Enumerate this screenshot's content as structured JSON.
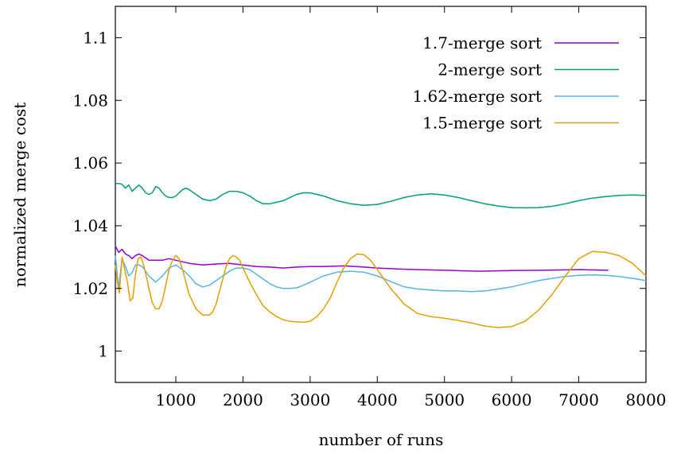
{
  "chart_data": {
    "type": "line",
    "xlabel": "number of runs",
    "ylabel": "normalized merge cost",
    "xlim": [
      100,
      8000
    ],
    "ylim": [
      0.99,
      1.11
    ],
    "xticks": [
      1000,
      2000,
      3000,
      4000,
      5000,
      6000,
      7000,
      8000
    ],
    "yticks": [
      1,
      1.02,
      1.04,
      1.06,
      1.08,
      1.1
    ],
    "xtick_labels": [
      "1000",
      "2000",
      "3000",
      "4000",
      "5000",
      "6000",
      "7000",
      "8000"
    ],
    "ytick_labels": [
      "1",
      "1.02",
      "1.04",
      "1.06",
      "1.08",
      "1.1"
    ],
    "grid": false,
    "legend_position": "top-right",
    "series": [
      {
        "name": "1.7-merge sort",
        "color": "#9400d3",
        "x": [
          100,
          150,
          200,
          250,
          300,
          350,
          400,
          450,
          500,
          600,
          700,
          800,
          900,
          1000,
          1200,
          1400,
          1600,
          1800,
          2000,
          2200,
          2400,
          2600,
          2800,
          3000,
          3200,
          3500,
          3800,
          4000,
          4300,
          4600,
          5000,
          5500,
          6000,
          6500,
          7000,
          7440
        ],
        "values": [
          1.0335,
          1.0315,
          1.0325,
          1.031,
          1.0305,
          1.0295,
          1.0305,
          1.031,
          1.0305,
          1.029,
          1.029,
          1.029,
          1.0295,
          1.029,
          1.028,
          1.0275,
          1.0278,
          1.028,
          1.0275,
          1.027,
          1.0268,
          1.0265,
          1.0268,
          1.027,
          1.027,
          1.0272,
          1.0268,
          1.0265,
          1.0262,
          1.026,
          1.0258,
          1.0255,
          1.0257,
          1.0258,
          1.026,
          1.0258
        ]
      },
      {
        "name": "2-merge sort",
        "color": "#009e73",
        "x": [
          100,
          150,
          200,
          250,
          300,
          350,
          400,
          450,
          500,
          550,
          600,
          650,
          700,
          750,
          800,
          850,
          900,
          950,
          1000,
          1050,
          1100,
          1150,
          1200,
          1300,
          1400,
          1500,
          1600,
          1700,
          1800,
          1900,
          2000,
          2100,
          2200,
          2300,
          2400,
          2500,
          2600,
          2700,
          2800,
          2900,
          3000,
          3200,
          3400,
          3600,
          3800,
          4000,
          4200,
          4400,
          4600,
          4800,
          5000,
          5200,
          5400,
          5600,
          5800,
          6000,
          6200,
          6400,
          6600,
          6800,
          7000,
          7200,
          7400,
          7600,
          7800,
          8000
        ],
        "values": [
          1.0535,
          1.0535,
          1.0532,
          1.052,
          1.053,
          1.051,
          1.052,
          1.053,
          1.052,
          1.0505,
          1.05,
          1.0505,
          1.0525,
          1.052,
          1.0505,
          1.0495,
          1.049,
          1.049,
          1.0495,
          1.0505,
          1.0515,
          1.052,
          1.0515,
          1.05,
          1.0485,
          1.048,
          1.0485,
          1.05,
          1.051,
          1.051,
          1.0505,
          1.0495,
          1.048,
          1.047,
          1.047,
          1.0475,
          1.048,
          1.049,
          1.05,
          1.0505,
          1.0505,
          1.0495,
          1.048,
          1.047,
          1.0465,
          1.0468,
          1.0478,
          1.049,
          1.0498,
          1.0502,
          1.0498,
          1.049,
          1.048,
          1.047,
          1.0463,
          1.0458,
          1.0457,
          1.0458,
          1.0462,
          1.047,
          1.048,
          1.0488,
          1.0493,
          1.0497,
          1.0498,
          1.0497
        ]
      },
      {
        "name": "1.62-merge sort",
        "color": "#56b4e9",
        "x": [
          100,
          150,
          200,
          250,
          300,
          350,
          400,
          450,
          500,
          550,
          600,
          650,
          700,
          800,
          900,
          950,
          1000,
          1100,
          1200,
          1300,
          1400,
          1500,
          1600,
          1700,
          1800,
          1900,
          2000,
          2100,
          2200,
          2300,
          2400,
          2500,
          2600,
          2700,
          2800,
          2900,
          3000,
          3200,
          3400,
          3600,
          3800,
          4000,
          4200,
          4400,
          4600,
          4800,
          5000,
          5200,
          5400,
          5600,
          5800,
          6000,
          6200,
          6400,
          6600,
          6800,
          7000,
          7200,
          7400,
          7600,
          7800,
          8000
        ],
        "values": [
          1.0305,
          1.02,
          1.0295,
          1.027,
          1.024,
          1.025,
          1.0275,
          1.0275,
          1.027,
          1.0255,
          1.024,
          1.023,
          1.022,
          1.024,
          1.0265,
          1.027,
          1.0275,
          1.026,
          1.024,
          1.0215,
          1.0205,
          1.021,
          1.0225,
          1.024,
          1.0255,
          1.0265,
          1.0265,
          1.026,
          1.0245,
          1.023,
          1.0215,
          1.0205,
          1.02,
          1.02,
          1.0202,
          1.021,
          1.022,
          1.024,
          1.0252,
          1.0255,
          1.0252,
          1.024,
          1.0222,
          1.0205,
          1.0198,
          1.0195,
          1.0192,
          1.0192,
          1.019,
          1.0192,
          1.0198,
          1.0205,
          1.0215,
          1.0225,
          1.0232,
          1.0238,
          1.0242,
          1.0243,
          1.0242,
          1.0238,
          1.0232,
          1.0225
        ]
      },
      {
        "name": "1.5-merge sort",
        "color": "#e69f00",
        "x": [
          100,
          130,
          160,
          200,
          240,
          280,
          320,
          360,
          400,
          440,
          480,
          520,
          560,
          600,
          650,
          700,
          750,
          800,
          850,
          900,
          950,
          1000,
          1050,
          1100,
          1150,
          1200,
          1300,
          1400,
          1500,
          1550,
          1600,
          1650,
          1700,
          1750,
          1800,
          1850,
          1900,
          1950,
          2000,
          2100,
          2200,
          2300,
          2400,
          2500,
          2600,
          2700,
          2800,
          2900,
          3000,
          3100,
          3200,
          3300,
          3400,
          3500,
          3600,
          3700,
          3800,
          3900,
          4000,
          4200,
          4400,
          4600,
          4800,
          5000,
          5200,
          5400,
          5600,
          5800,
          6000,
          6200,
          6400,
          6600,
          6800,
          7000,
          7200,
          7400,
          7600,
          7800,
          8000
        ],
        "values": [
          1.0275,
          1.022,
          1.0185,
          1.03,
          1.026,
          1.022,
          1.016,
          1.017,
          1.0245,
          1.0295,
          1.03,
          1.0275,
          1.024,
          1.02,
          1.0155,
          1.0135,
          1.0135,
          1.016,
          1.021,
          1.026,
          1.029,
          1.0305,
          1.0295,
          1.026,
          1.022,
          1.018,
          1.0135,
          1.0115,
          1.0115,
          1.0125,
          1.015,
          1.019,
          1.023,
          1.027,
          1.0295,
          1.0305,
          1.03,
          1.029,
          1.0265,
          1.022,
          1.018,
          1.0145,
          1.0125,
          1.011,
          1.01,
          1.0095,
          1.0093,
          1.0092,
          1.0095,
          1.011,
          1.0135,
          1.017,
          1.022,
          1.0265,
          1.0295,
          1.031,
          1.0308,
          1.029,
          1.026,
          1.02,
          1.015,
          1.012,
          1.011,
          1.0105,
          1.0098,
          1.009,
          1.008,
          1.0075,
          1.0078,
          1.0095,
          1.013,
          1.018,
          1.024,
          1.0295,
          1.0318,
          1.0315,
          1.0305,
          1.028,
          1.024
        ]
      }
    ]
  }
}
